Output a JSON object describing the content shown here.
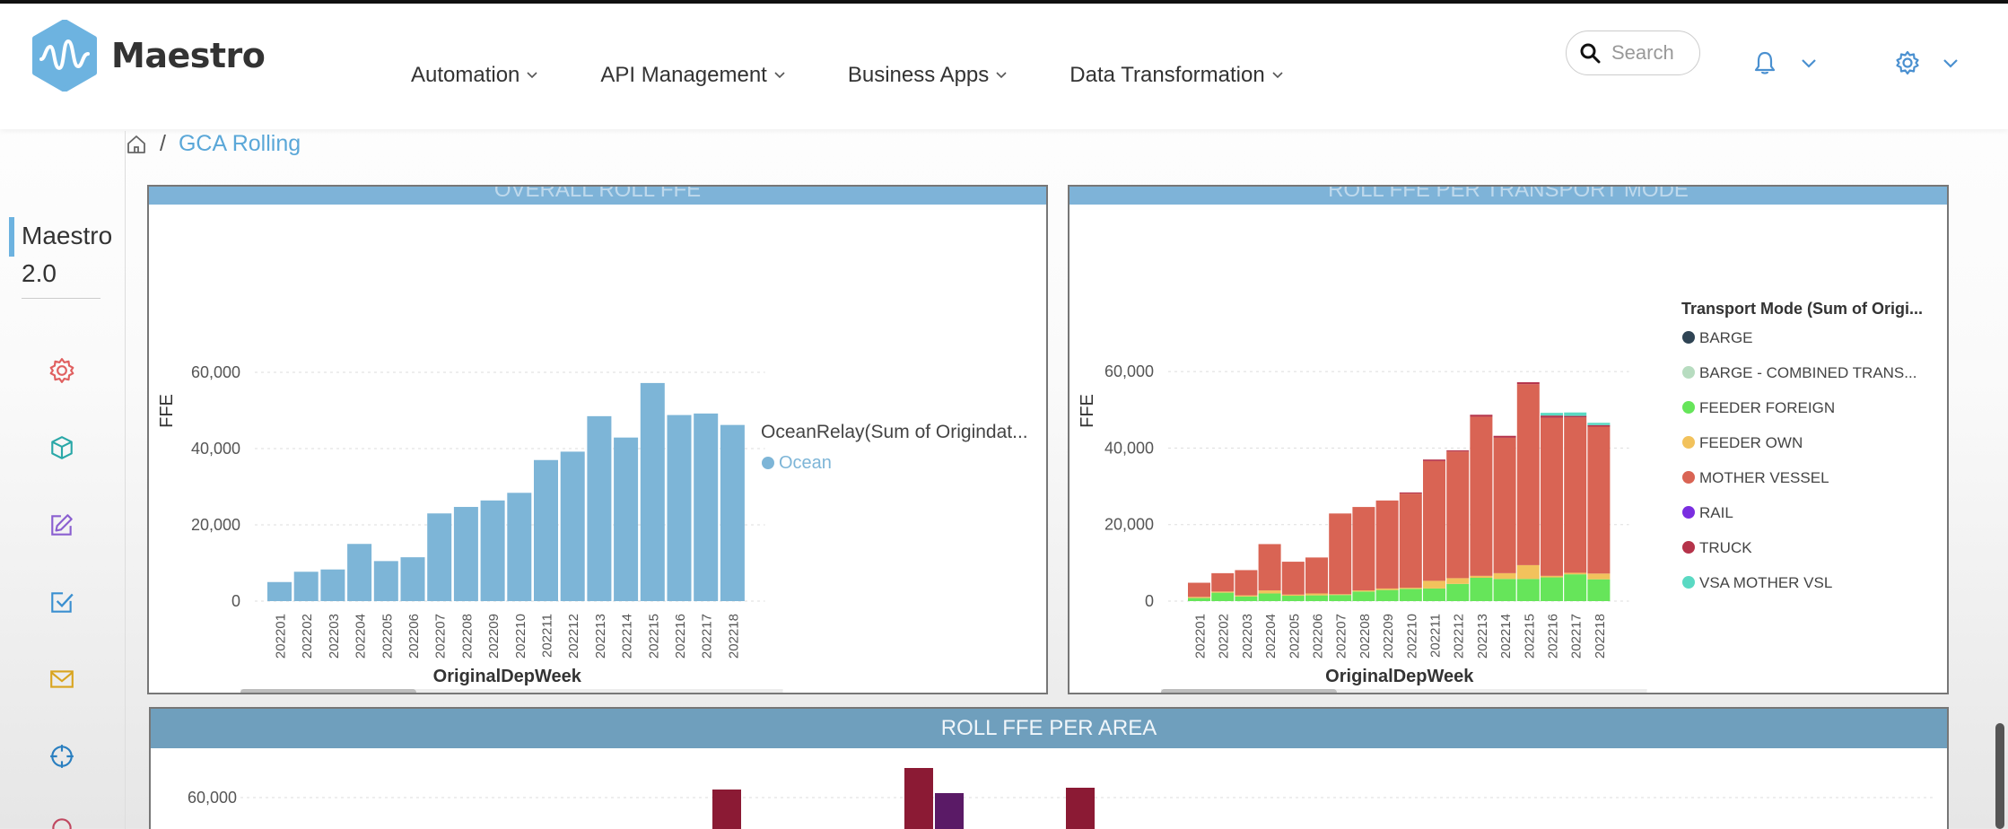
{
  "app": {
    "name": "Maestro"
  },
  "nav": {
    "items": [
      {
        "label": "Automation"
      },
      {
        "label": "API Management"
      },
      {
        "label": "Business Apps"
      },
      {
        "label": "Data Transformation"
      }
    ]
  },
  "search": {
    "placeholder": "Search"
  },
  "icons": {
    "logo": "maestro-logo-icon",
    "search": "search-icon",
    "bell": "bell-icon",
    "gear": "gear-icon",
    "home": "home-icon",
    "sidebar": [
      "gear-icon",
      "cube-icon",
      "edit-icon",
      "checkbox-icon",
      "mail-icon",
      "crosshair-icon"
    ]
  },
  "breadcrumb": {
    "separator": "/",
    "current": "GCA Rolling"
  },
  "sidebar": {
    "title_line1": "Maestro",
    "title_line2": "2.0"
  },
  "colors": {
    "accent": "#5aa7d8",
    "header_bar": "#7eb3d8",
    "ocean": "#7db5d7",
    "barge": "#2f4454",
    "barge_combined": "#b7dcc0",
    "feeder_foreign": "#66e55a",
    "feeder_own": "#f2c25c",
    "mother_vessel": "#d96454",
    "rail": "#7a2ee0",
    "truck": "#b5334a",
    "vsa": "#5ad9c3"
  },
  "panels": {
    "p1": {
      "title": "OVERALL ROLL FFE"
    },
    "p2": {
      "title": "ROLL FFE PER TRANSPORT MODE"
    },
    "p3": {
      "title": "ROLL FFE PER AREA"
    }
  },
  "chart_data": [
    {
      "type": "bar",
      "title": "OVERALL ROLL FFE",
      "xlabel": "OriginalDepWeek",
      "ylabel": "FFE",
      "ylim": [
        0,
        60000
      ],
      "yticks": [
        "0",
        "20,000",
        "40,000",
        "60,000"
      ],
      "legend_title": "OceanRelay(Sum of Origindat...",
      "legend_placement": "right",
      "categories": [
        "202201",
        "202202",
        "202203",
        "202204",
        "202205",
        "202206",
        "202207",
        "202208",
        "202209",
        "202210",
        "202211",
        "202212",
        "202213",
        "202214",
        "202215",
        "202216",
        "202217",
        "202218"
      ],
      "series": [
        {
          "name": "Ocean",
          "values": [
            5000,
            7700,
            8300,
            15000,
            10500,
            11500,
            23000,
            24700,
            26400,
            28400,
            37000,
            39200,
            48500,
            42900,
            57200,
            48800,
            49200,
            46200
          ]
        }
      ]
    },
    {
      "type": "bar",
      "stacked": true,
      "title": "ROLL FFE PER TRANSPORT MODE",
      "xlabel": "OriginalDepWeek",
      "ylabel": "FFE",
      "ylim": [
        0,
        60000
      ],
      "yticks": [
        "0",
        "20,000",
        "40,000",
        "60,000"
      ],
      "legend_title": "Transport Mode (Sum of Origi...",
      "legend_placement": "right",
      "categories": [
        "202201",
        "202202",
        "202203",
        "202204",
        "202205",
        "202206",
        "202207",
        "202208",
        "202209",
        "202210",
        "202211",
        "202212",
        "202213",
        "202214",
        "202215",
        "202216",
        "202217",
        "202218"
      ],
      "series": [
        {
          "name": "BARGE",
          "values": [
            0,
            0,
            0,
            0,
            0,
            0,
            0,
            0,
            0,
            0,
            0,
            0,
            0,
            0,
            0,
            0,
            0,
            0
          ]
        },
        {
          "name": "BARGE - COMBINED TRANS...",
          "values": [
            0,
            0,
            0,
            0,
            0,
            0,
            0,
            0,
            0,
            0,
            0,
            0,
            0,
            0,
            0,
            0,
            0,
            0
          ]
        },
        {
          "name": "FEEDER FOREIGN",
          "values": [
            800,
            2200,
            1200,
            2000,
            1400,
            1500,
            1600,
            2500,
            2900,
            3200,
            3300,
            4500,
            6100,
            5800,
            5800,
            6200,
            7000,
            5700
          ]
        },
        {
          "name": "FEEDER OWN",
          "values": [
            300,
            300,
            300,
            800,
            300,
            500,
            200,
            300,
            400,
            300,
            2000,
            1500,
            500,
            1500,
            3600,
            400,
            400,
            1500
          ]
        },
        {
          "name": "MOTHER VESSEL",
          "values": [
            3700,
            4800,
            6600,
            12100,
            8600,
            9400,
            21100,
            21800,
            23000,
            24600,
            31300,
            33100,
            41600,
            35400,
            47300,
            41300,
            40600,
            38400
          ]
        },
        {
          "name": "RAIL",
          "values": [
            0,
            0,
            0,
            0,
            0,
            0,
            0,
            0,
            0,
            0,
            0,
            0,
            0,
            0,
            0,
            0,
            0,
            0
          ]
        },
        {
          "name": "TRUCK",
          "values": [
            0,
            0,
            0,
            0,
            0,
            0,
            0,
            0,
            0,
            300,
            400,
            300,
            500,
            500,
            500,
            600,
            400,
            400
          ]
        },
        {
          "name": "VSA MOTHER VSL",
          "values": [
            0,
            0,
            0,
            0,
            0,
            0,
            0,
            0,
            0,
            0,
            0,
            0,
            0,
            0,
            0,
            700,
            900,
            600
          ]
        }
      ]
    },
    {
      "type": "bar",
      "title": "ROLL FFE PER AREA",
      "ylim": [
        0,
        60000
      ],
      "yticks": [
        "60,000"
      ]
    }
  ]
}
